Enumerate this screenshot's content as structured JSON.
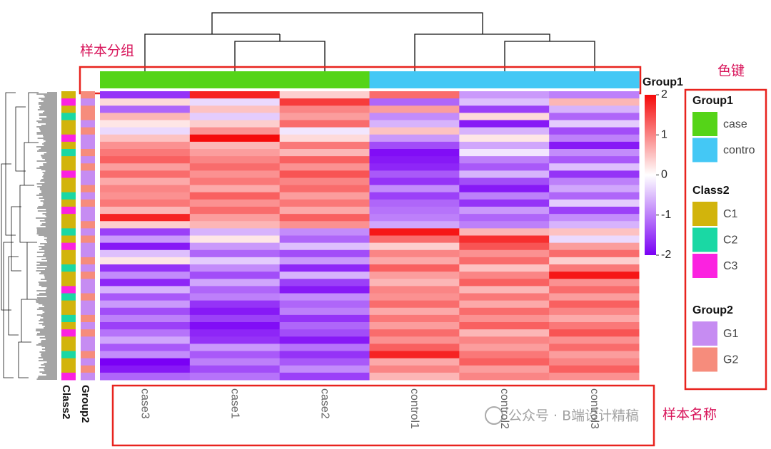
{
  "chart_data": {
    "type": "heatmap",
    "columns": [
      "case3",
      "case1",
      "case2",
      "control1",
      "control2",
      "control3"
    ],
    "values": [
      [
        -1.6,
        1.8,
        0.4,
        1.2,
        -0.8,
        -1.0
      ],
      [
        0.3,
        -0.3,
        1.6,
        -1.2,
        -0.5,
        0.6
      ],
      [
        -1.2,
        0.5,
        1.0,
        0.8,
        -1.5,
        -0.6
      ],
      [
        0.6,
        -0.4,
        0.8,
        -0.9,
        0.3,
        -1.2
      ],
      [
        0.2,
        0.4,
        1.2,
        -0.6,
        -1.8,
        -0.4
      ],
      [
        -0.3,
        0.9,
        -0.2,
        0.5,
        -0.6,
        -1.4
      ],
      [
        0.5,
        2.0,
        0.3,
        -0.8,
        0.2,
        -1.0
      ],
      [
        0.9,
        0.6,
        1.1,
        -1.4,
        -0.7,
        -1.8
      ],
      [
        1.1,
        0.8,
        0.6,
        -1.9,
        -0.2,
        -0.9
      ],
      [
        1.3,
        1.0,
        1.3,
        -1.8,
        -1.0,
        -1.3
      ],
      [
        0.8,
        1.2,
        0.9,
        -1.7,
        -1.3,
        -0.5
      ],
      [
        1.2,
        0.9,
        1.4,
        -1.3,
        -0.6,
        -1.6
      ],
      [
        0.7,
        1.1,
        1.0,
        -1.6,
        -1.4,
        -1.0
      ],
      [
        1.0,
        0.7,
        1.2,
        -0.9,
        -1.8,
        -0.7
      ],
      [
        0.9,
        1.3,
        0.8,
        -1.5,
        -1.0,
        -1.2
      ],
      [
        1.1,
        0.9,
        1.1,
        -1.2,
        -1.6,
        -0.4
      ],
      [
        0.6,
        1.2,
        0.7,
        -1.1,
        -0.8,
        -1.5
      ],
      [
        1.8,
        0.8,
        1.3,
        -1.0,
        -1.2,
        -0.9
      ],
      [
        0.4,
        0.6,
        0.9,
        -0.7,
        -1.0,
        -0.6
      ],
      [
        -1.5,
        -0.6,
        -0.9,
        1.9,
        0.6,
        0.5
      ],
      [
        -0.8,
        0.2,
        -1.2,
        1.2,
        1.7,
        -0.3
      ],
      [
        -1.8,
        -0.8,
        -0.5,
        0.4,
        1.4,
        0.8
      ],
      [
        -0.5,
        -1.2,
        -1.4,
        1.0,
        0.9,
        1.2
      ],
      [
        0.2,
        -0.4,
        -0.8,
        0.7,
        1.2,
        0.4
      ],
      [
        -1.6,
        -0.9,
        -1.7,
        1.3,
        0.5,
        1.1
      ],
      [
        -0.9,
        -1.4,
        -0.6,
        0.8,
        1.0,
        1.9
      ],
      [
        -1.7,
        -0.7,
        -1.5,
        0.6,
        1.3,
        0.9
      ],
      [
        -0.6,
        -1.2,
        -1.8,
        1.0,
        0.6,
        1.2
      ],
      [
        -1.3,
        -1.0,
        -0.9,
        0.9,
        1.1,
        0.8
      ],
      [
        -0.8,
        -1.6,
        -1.2,
        1.2,
        0.7,
        1.3
      ],
      [
        -1.4,
        -1.8,
        -1.0,
        0.7,
        1.2,
        1.0
      ],
      [
        -1.0,
        -1.5,
        -1.6,
        1.1,
        0.9,
        0.7
      ],
      [
        -1.5,
        -1.9,
        -1.2,
        0.8,
        1.3,
        1.1
      ],
      [
        -1.1,
        -1.7,
        -1.4,
        1.2,
        0.6,
        1.4
      ],
      [
        -0.7,
        -1.6,
        -1.8,
        0.9,
        1.0,
        0.9
      ],
      [
        -1.3,
        -0.8,
        -1.1,
        1.3,
        0.8,
        1.2
      ],
      [
        -0.9,
        -1.3,
        -1.6,
        1.8,
        1.1,
        0.8
      ],
      [
        -2.0,
        -1.0,
        -1.3,
        0.7,
        1.3,
        1.0
      ],
      [
        -1.8,
        -1.4,
        -0.9,
        1.0,
        0.8,
        1.3
      ],
      [
        -1.2,
        -1.1,
        -1.5,
        0.6,
        1.0,
        0.9
      ]
    ],
    "zlim": [
      -2,
      2
    ],
    "zticks": [
      2,
      1,
      0,
      -1,
      -2
    ],
    "colorscale": [
      "#7a00f5",
      "#ffffff",
      "#f50a0a"
    ],
    "col_annotation": {
      "name": "Group1",
      "values": [
        "case",
        "case",
        "case",
        "contro",
        "contro",
        "contro"
      ]
    },
    "row_annotations": [
      {
        "name": "Class2",
        "values": [
          "C1",
          "C3",
          "C1",
          "C2",
          "C1",
          "C1",
          "C3",
          "C1",
          "C2",
          "C1",
          "C1",
          "C3",
          "C1",
          "C1",
          "C2",
          "C1",
          "C3",
          "C1",
          "C1",
          "C2",
          "C1",
          "C3",
          "C1",
          "C1",
          "C2",
          "C1",
          "C1",
          "C3",
          "C2",
          "C1",
          "C1",
          "C2",
          "C1",
          "C3",
          "C1",
          "C1",
          "C2",
          "C1",
          "C1",
          "C3"
        ]
      },
      {
        "name": "Group2",
        "values": [
          "G2",
          "G1",
          "G2",
          "G2",
          "G1",
          "G2",
          "G1",
          "G1",
          "G2",
          "G1",
          "G2",
          "G1",
          "G1",
          "G2",
          "G1",
          "G2",
          "G1",
          "G1",
          "G2",
          "G1",
          "G2",
          "G1",
          "G1",
          "G2",
          "G1",
          "G2",
          "G1",
          "G1",
          "G2",
          "G1",
          "G1",
          "G2",
          "G1",
          "G2",
          "G1",
          "G1",
          "G2",
          "G1",
          "G2",
          "G1"
        ]
      }
    ],
    "legend": [
      {
        "title": "Group1",
        "items": [
          {
            "label": "case",
            "color": "#55d418"
          },
          {
            "label": "contro",
            "color": "#44c8f5"
          }
        ]
      },
      {
        "title": "Class2",
        "items": [
          {
            "label": "C1",
            "color": "#d2b40c"
          },
          {
            "label": "C2",
            "color": "#1ad8a4"
          },
          {
            "label": "C3",
            "color": "#fb22e0"
          }
        ]
      },
      {
        "title": "Group2",
        "items": [
          {
            "label": "G1",
            "color": "#c68cf2"
          },
          {
            "label": "G2",
            "color": "#f68c7c"
          }
        ]
      }
    ],
    "callouts": [
      "样本分组",
      "色键",
      "样本名称"
    ],
    "watermark": "公众号 · B端设计精稿"
  }
}
